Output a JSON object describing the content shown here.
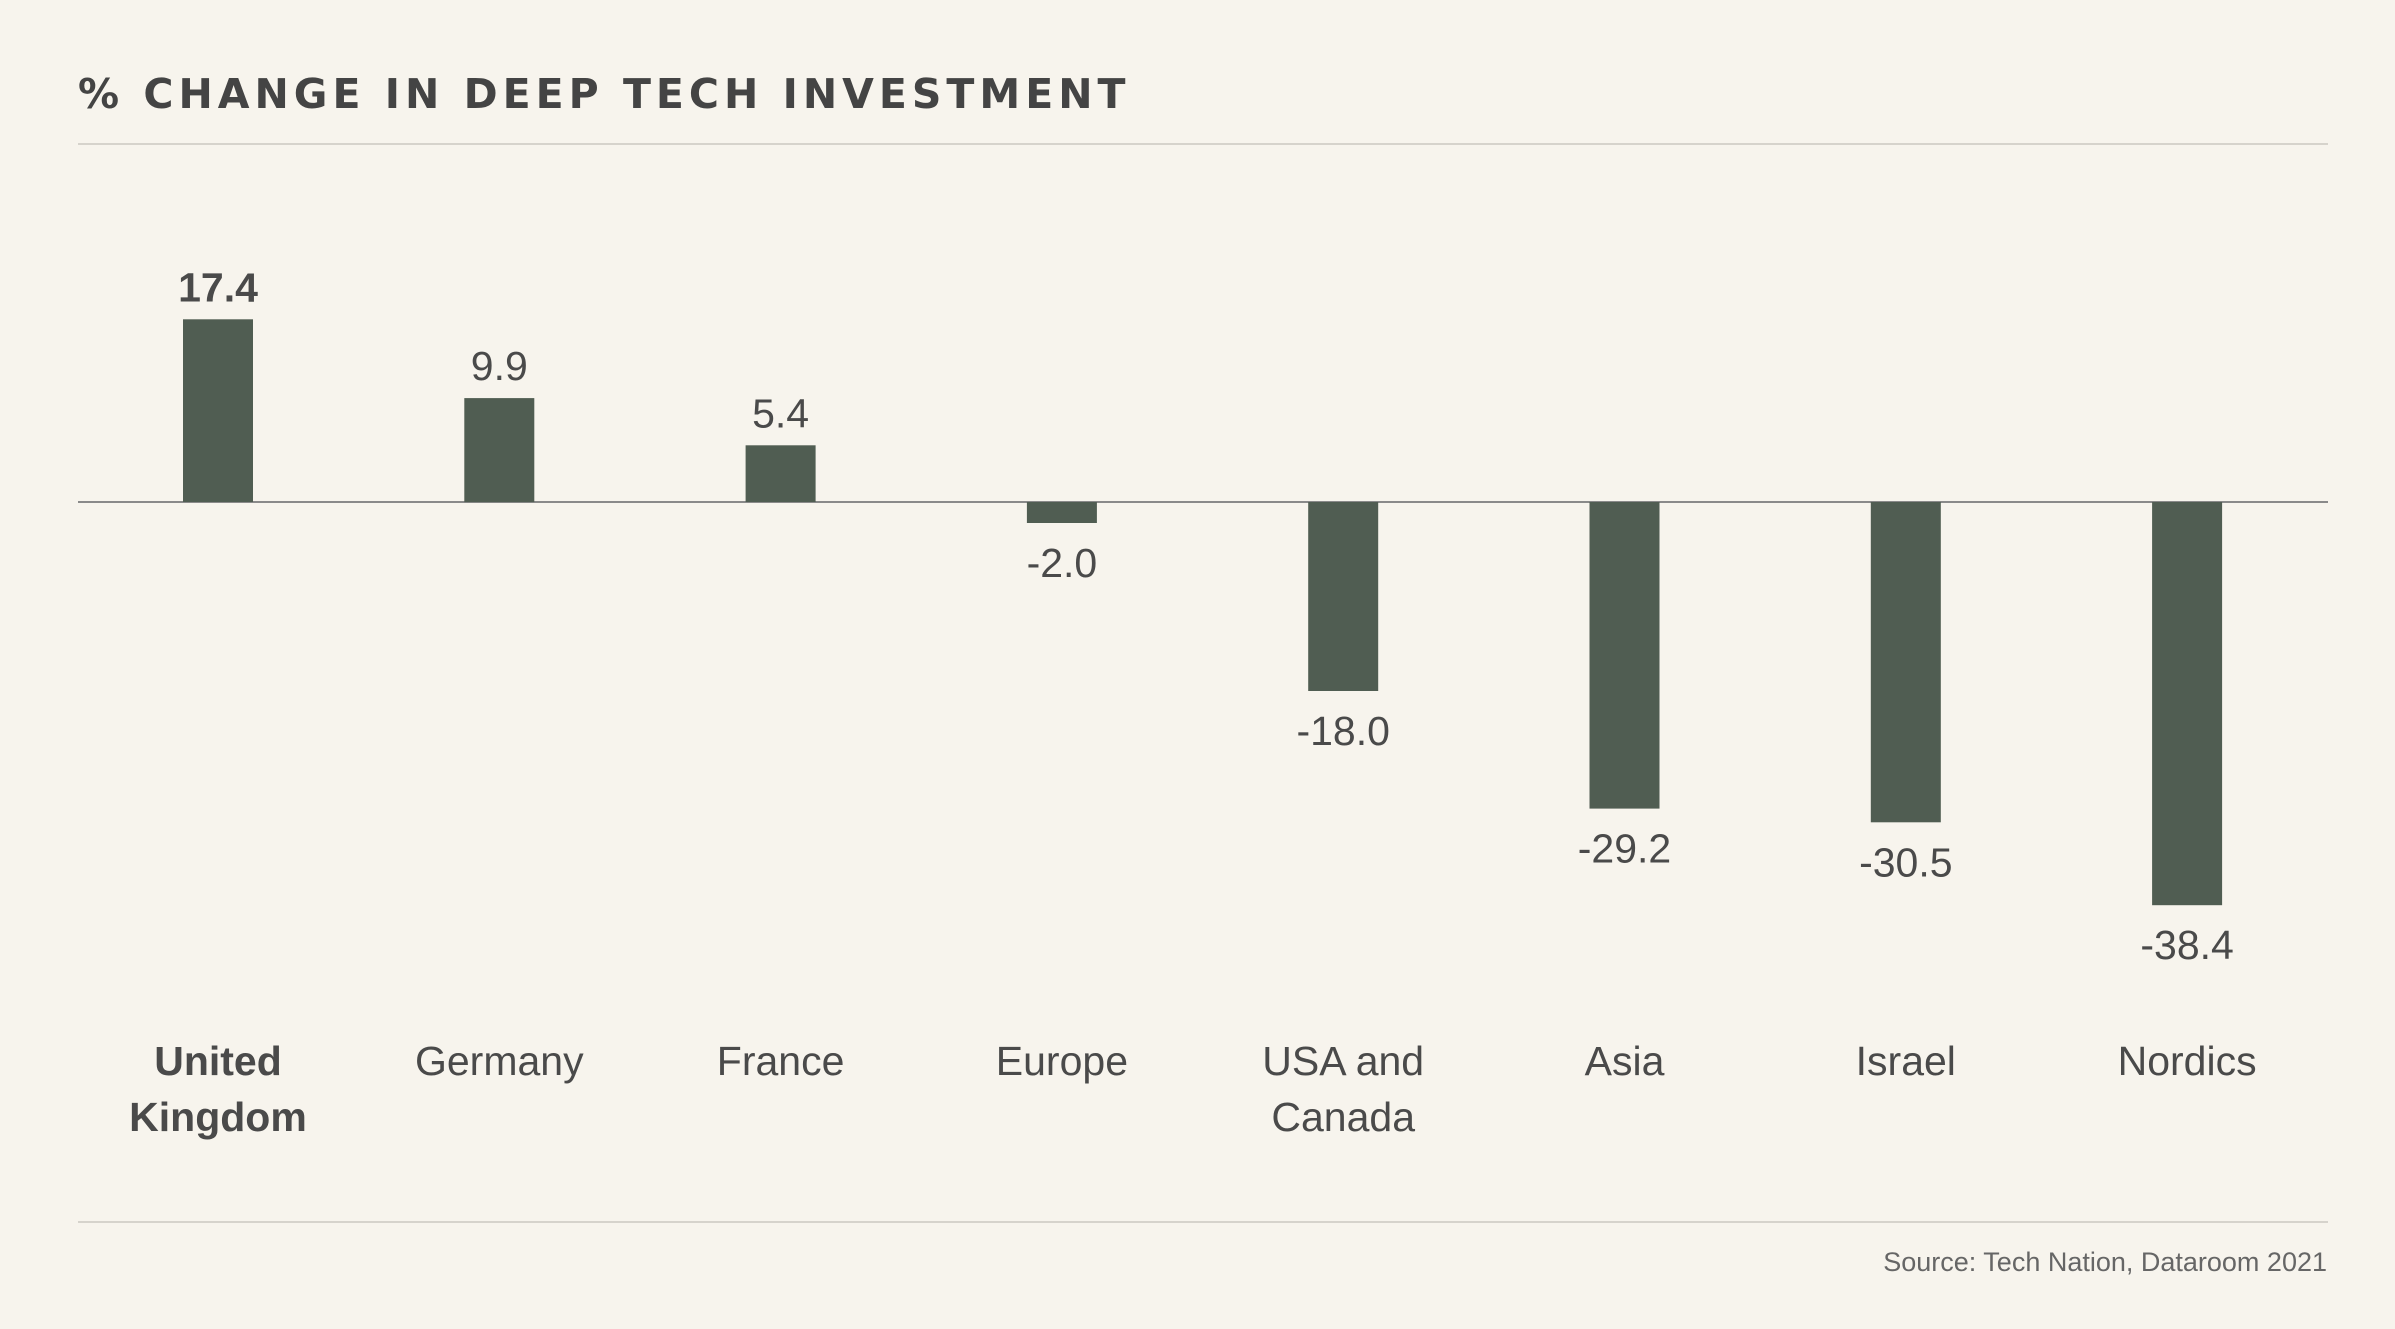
{
  "title": "% CHANGE IN DEEP TECH INVESTMENT",
  "source": "Source: Tech Nation, Dataroom 2021",
  "colors": {
    "background": "#f7f4ed",
    "bar": "#505d52",
    "text": "#4a4a4a",
    "zero_line": "#8a8a8a"
  },
  "chart_data": {
    "type": "bar",
    "categories": [
      "United Kingdom",
      "Germany",
      "France",
      "Europe",
      "USA and Canada",
      "Asia",
      "Israel",
      "Nordics"
    ],
    "category_label_lines": [
      [
        "United",
        "Kingdom"
      ],
      [
        "Germany"
      ],
      [
        "France"
      ],
      [
        "Europe"
      ],
      [
        "USA and",
        "Canada"
      ],
      [
        "Asia"
      ],
      [
        "Israel"
      ],
      [
        "Nordics"
      ]
    ],
    "values": [
      17.4,
      9.9,
      5.4,
      -2.0,
      -18.0,
      -29.2,
      -30.5,
      -38.4
    ],
    "value_labels": [
      "17.4",
      "9.9",
      "5.4",
      "-2.0",
      "-18.0",
      "-29.2",
      "-30.5",
      "-38.4"
    ],
    "highlighted_category": "United Kingdom",
    "title": "% CHANGE IN DEEP TECH INVESTMENT",
    "xlabel": "",
    "ylabel": "",
    "ylim": [
      -38.4,
      17.4
    ],
    "grid": false,
    "legend": "none"
  }
}
